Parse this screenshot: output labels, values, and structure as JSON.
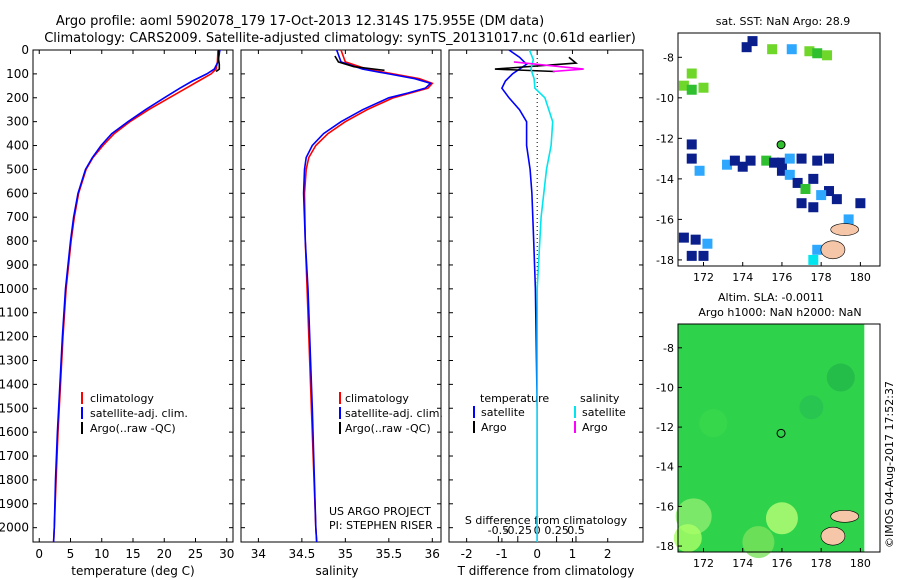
{
  "header": {
    "title_line1": "Argo profile: aoml 5902078_179 17-Oct-2013 12.314S 175.955E (DM data)",
    "title_line2": "Climatology: CARS2009. Satellite-adjusted climatology: synTS_20131017.nc (0.61d earlier)"
  },
  "colors": {
    "climatology": "#ff0000",
    "satellite": "#0000ff",
    "argo": "#000000",
    "salinity_sat": "#00e5ee",
    "salinity_argo": "#ff00ff"
  },
  "chart_data": [
    {
      "id": "temperature",
      "type": "line",
      "xlabel": "temperature (deg C)",
      "ylabel": "",
      "xlim": [
        -1,
        31
      ],
      "ylim": [
        2060,
        0
      ],
      "xticks": [
        0,
        5,
        10,
        15,
        20,
        25,
        30
      ],
      "yticks": [
        0,
        100,
        200,
        300,
        400,
        500,
        600,
        700,
        800,
        900,
        1000,
        1100,
        1200,
        1300,
        1400,
        1500,
        1600,
        1700,
        1800,
        1900,
        2000
      ],
      "legend": [
        "climatology",
        "satellite-adj. clim.",
        "Argo(..raw -QC)"
      ],
      "series": [
        {
          "name": "climatology",
          "depth": [
            0,
            50,
            80,
            100,
            130,
            160,
            200,
            250,
            300,
            350,
            400,
            450,
            500,
            600,
            700,
            800,
            900,
            1000,
            1200,
            1400,
            1600,
            1800,
            2000,
            2060
          ],
          "values": [
            28.6,
            28.5,
            28.3,
            27.5,
            25.5,
            23.5,
            20.8,
            17.5,
            14.5,
            12.0,
            10.2,
            8.6,
            7.5,
            6.3,
            5.6,
            5.1,
            4.7,
            4.3,
            3.8,
            3.4,
            3.0,
            2.7,
            2.4,
            2.3
          ]
        },
        {
          "name": "satellite-adj. clim.",
          "depth": [
            0,
            50,
            80,
            100,
            130,
            160,
            200,
            250,
            300,
            350,
            400,
            450,
            500,
            600,
            700,
            800,
            900,
            1000,
            1200,
            1400,
            1600,
            1800,
            2000,
            2060
          ],
          "values": [
            28.9,
            28.6,
            28.0,
            26.8,
            24.5,
            22.5,
            20.0,
            17.0,
            14.2,
            11.6,
            9.9,
            8.5,
            7.4,
            6.2,
            5.5,
            5.0,
            4.6,
            4.2,
            3.7,
            3.3,
            2.9,
            2.6,
            2.4,
            2.3
          ]
        },
        {
          "name": "Argo(..raw -QC)",
          "depth": [
            0,
            20,
            40,
            60,
            80,
            90
          ],
          "values": [
            28.7,
            28.7,
            28.7,
            28.8,
            28.8,
            28.3
          ]
        }
      ]
    },
    {
      "id": "salinity",
      "type": "line",
      "xlabel": "salinity",
      "xlim": [
        33.8,
        36.1
      ],
      "ylim": [
        2060,
        0
      ],
      "xticks": [
        34,
        34.5,
        35,
        35.5,
        36
      ],
      "xticklabels": [
        "34",
        "34.5",
        "35",
        "35.5",
        "36"
      ],
      "legend": [
        "climatology",
        "satellite-adj. clim.",
        "Argo(..raw -QC)"
      ],
      "annotations": [
        "US ARGO PROJECT",
        "PI: STEPHEN RISER"
      ],
      "series": [
        {
          "name": "climatology",
          "depth": [
            0,
            50,
            80,
            100,
            120,
            140,
            160,
            180,
            200,
            250,
            300,
            350,
            400,
            450,
            500,
            600,
            800,
            1000,
            1500,
            2000,
            2060
          ],
          "values": [
            34.95,
            35.0,
            35.25,
            35.55,
            35.85,
            36.0,
            35.95,
            35.75,
            35.55,
            35.25,
            35.0,
            34.8,
            34.66,
            34.58,
            34.55,
            34.53,
            34.54,
            34.56,
            34.61,
            34.66,
            34.67
          ]
        },
        {
          "name": "satellite-adj. clim.",
          "depth": [
            0,
            50,
            80,
            100,
            120,
            140,
            160,
            180,
            200,
            250,
            300,
            350,
            400,
            450,
            500,
            600,
            800,
            1000,
            1500,
            2000,
            2060
          ],
          "values": [
            34.9,
            34.95,
            35.2,
            35.5,
            35.8,
            35.98,
            35.92,
            35.72,
            35.5,
            35.2,
            34.95,
            34.75,
            34.62,
            34.55,
            34.53,
            34.52,
            34.54,
            34.57,
            34.62,
            34.66,
            34.67
          ]
        },
        {
          "name": "Argo(..raw -QC)",
          "depth": [
            25,
            50,
            70,
            85
          ],
          "values": [
            34.88,
            34.92,
            35.1,
            35.45
          ]
        }
      ]
    },
    {
      "id": "difference",
      "type": "line",
      "xlabel": "T difference from climatology",
      "x2label": "S difference from climatology",
      "xlim": [
        -2.5,
        3
      ],
      "ylim": [
        2060,
        0
      ],
      "xticks": [
        -2,
        -1,
        0,
        1,
        2
      ],
      "x2ticks": [
        -0.5,
        -0.25,
        0,
        0.25,
        0.5
      ],
      "x2ticklabels": [
        "-0.5",
        "-0.25",
        "0",
        "0.25",
        "0.5"
      ],
      "legend_temperature_title": "temperature",
      "legend_salinity_title": "salinity",
      "legend": [
        "satellite",
        "Argo",
        "satellite",
        "Argo"
      ],
      "series": [
        {
          "name": "T satellite",
          "depth": [
            0,
            30,
            60,
            80,
            100,
            130,
            160,
            200,
            250,
            300,
            400,
            500,
            600,
            800,
            1000,
            1500,
            2000,
            2060
          ],
          "values": [
            -0.8,
            -0.5,
            -0.3,
            -0.5,
            -0.7,
            -0.9,
            -1.0,
            -0.8,
            -0.5,
            -0.3,
            -0.3,
            -0.2,
            -0.15,
            -0.1,
            -0.05,
            0,
            0,
            0
          ]
        },
        {
          "name": "T Argo",
          "depth": [
            30,
            55,
            80,
            90
          ],
          "values": [
            0.9,
            1.1,
            -1.2,
            0.5
          ]
        },
        {
          "name": "S satellite",
          "depth": [
            0,
            40,
            80,
            120,
            160,
            200,
            300,
            400,
            500,
            700,
            1000,
            1500,
            2000,
            2060
          ],
          "values": [
            -0.1,
            -0.05,
            -0.08,
            -0.04,
            -0.03,
            0.1,
            0.2,
            0.18,
            0.12,
            0.05,
            0.0,
            0.0,
            0.0,
            0.0
          ]
        },
        {
          "name": "S Argo",
          "depth": [
            50,
            70,
            80,
            90
          ],
          "values": [
            -0.3,
            0.3,
            0.6,
            0.2
          ]
        }
      ]
    },
    {
      "id": "sst_map",
      "type": "heatmap",
      "title": "sat. SST: NaN Argo: 28.9",
      "xlim": [
        170.7,
        181
      ],
      "ylim": [
        -18.3,
        -6.8
      ],
      "xticks": [
        172,
        174,
        176,
        178,
        180
      ],
      "yticks": [
        -8,
        -10,
        -12,
        -14,
        -16,
        -18
      ],
      "profile_location": [
        175.955,
        -12.314
      ]
    },
    {
      "id": "sla_map",
      "type": "heatmap",
      "title_line1": "Altim. SLA: -0.0011",
      "title_line2": "Argo h1000: NaN h2000: NaN",
      "xlim": [
        170.7,
        181
      ],
      "ylim": [
        -18.3,
        -6.8
      ],
      "xticks": [
        172,
        174,
        176,
        178,
        180
      ],
      "yticks": [
        -8,
        -10,
        -12,
        -14,
        -16,
        -18
      ],
      "profile_location": [
        175.955,
        -12.314
      ]
    }
  ],
  "footer": {
    "timestamp": "©IMOS 04-Aug-2017 17:52:37"
  }
}
